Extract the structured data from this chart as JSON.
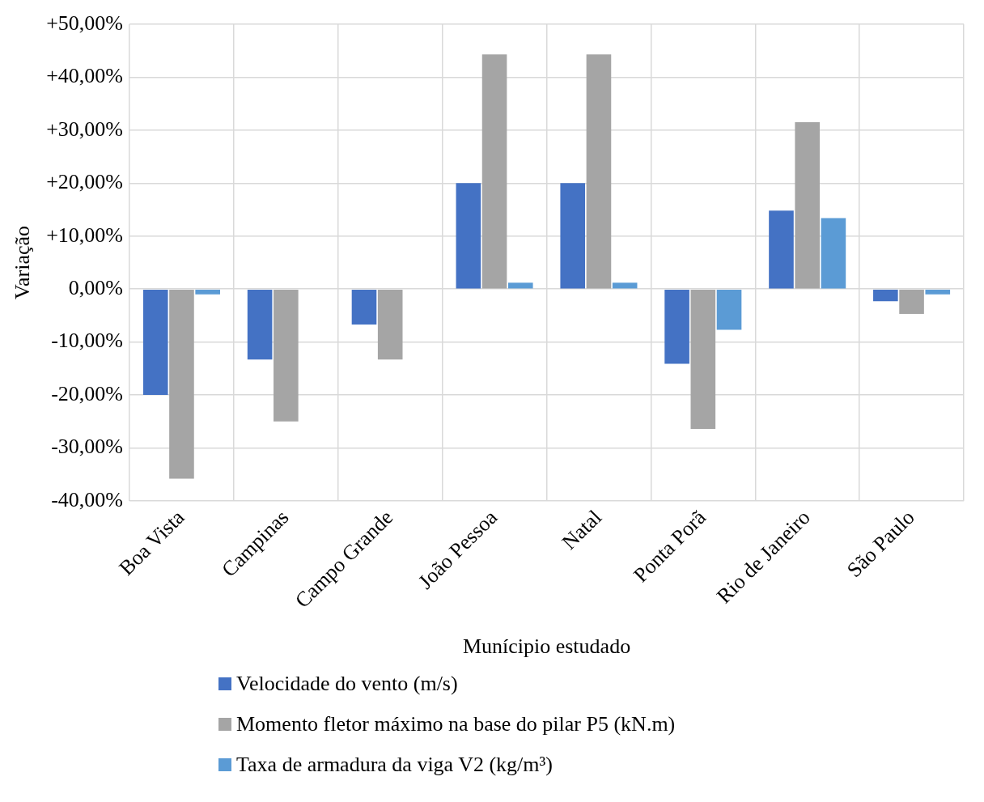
{
  "chart_data": {
    "type": "bar",
    "xlabel": "Munícipio estudado",
    "ylabel": "Variação",
    "categories": [
      "Boa Vista",
      "Campinas",
      "Campo Grande",
      "João Pessoa",
      "Natal",
      "Ponta Porã",
      "Rio de Janeiro",
      "São Paulo"
    ],
    "series": [
      {
        "name": "Velocidade do vento (m/s)",
        "color": "#4472c4",
        "values": [
          -20,
          -13.3,
          -6.7,
          20,
          20,
          -14.1,
          14.8,
          -2.3
        ]
      },
      {
        "name": "Momento fletor máximo na base do pilar P5 (kN.m)",
        "color": "#a5a5a5",
        "values": [
          -35.8,
          -25,
          -13.3,
          44.3,
          44.3,
          -26.4,
          31.5,
          -4.7
        ]
      },
      {
        "name": "Taxa de armadura da viga V2 (kg/m³)",
        "color": "#5b9bd5",
        "values": [
          -1,
          null,
          null,
          1.2,
          1.2,
          -7.7,
          13.4,
          -1
        ]
      }
    ],
    "ylim": [
      -40,
      50
    ],
    "yticks": [
      {
        "value": -40,
        "label": "-40,00%"
      },
      {
        "value": -30,
        "label": "-30,00%"
      },
      {
        "value": -20,
        "label": "-20,00%"
      },
      {
        "value": -10,
        "label": "-10,00%"
      },
      {
        "value": 0,
        "label": "0,00%"
      },
      {
        "value": 10,
        "label": "+10,00%"
      },
      {
        "value": 20,
        "label": "+20,00%"
      },
      {
        "value": 30,
        "label": "+30,00%"
      },
      {
        "value": 40,
        "label": "+40,00%"
      },
      {
        "value": 50,
        "label": "+50,00%"
      }
    ],
    "grid": true,
    "legend": "bottom"
  }
}
